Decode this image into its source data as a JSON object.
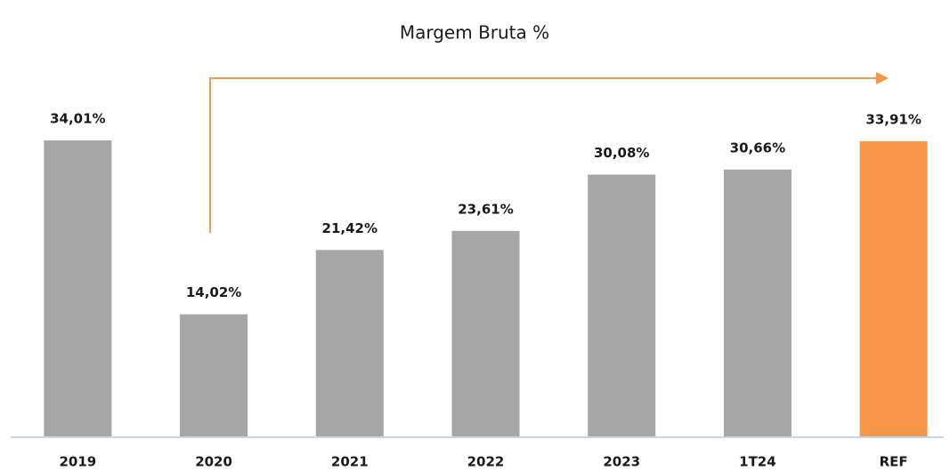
{
  "chart_data": {
    "type": "bar",
    "title": "Margem Bruta %",
    "categories": [
      "2019",
      "2020",
      "2021",
      "2022",
      "2023",
      "1T24",
      "REF"
    ],
    "values": [
      34.01,
      14.02,
      21.42,
      23.61,
      30.08,
      30.66,
      33.91
    ],
    "value_labels": [
      "34,01%",
      "14,02%",
      "21,42%",
      "23,61%",
      "30,08%",
      "30,66%",
      "33,91%"
    ],
    "colors": [
      "#a6a6a6",
      "#a6a6a6",
      "#a6a6a6",
      "#a6a6a6",
      "#a6a6a6",
      "#a6a6a6",
      "#f79646"
    ]
  }
}
